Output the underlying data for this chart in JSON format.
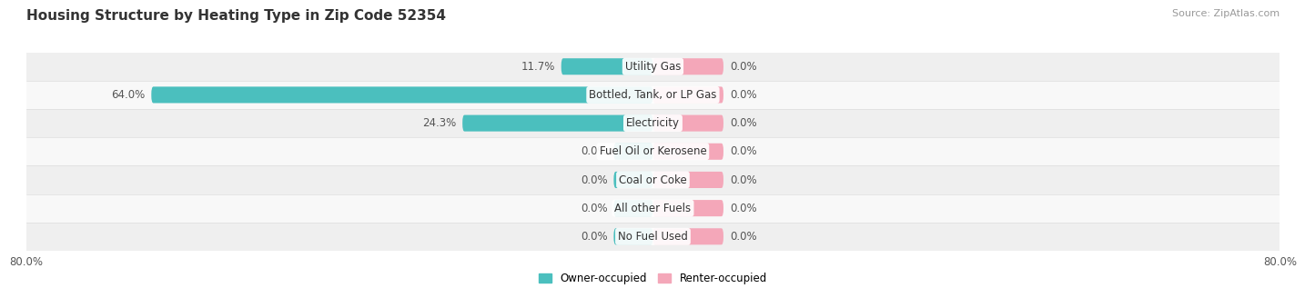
{
  "title": "Housing Structure by Heating Type in Zip Code 52354",
  "source": "Source: ZipAtlas.com",
  "categories": [
    "Utility Gas",
    "Bottled, Tank, or LP Gas",
    "Electricity",
    "Fuel Oil or Kerosene",
    "Coal or Coke",
    "All other Fuels",
    "No Fuel Used"
  ],
  "owner_values": [
    11.7,
    64.0,
    24.3,
    0.0,
    0.0,
    0.0,
    0.0
  ],
  "renter_values": [
    0.0,
    0.0,
    0.0,
    0.0,
    0.0,
    0.0,
    0.0
  ],
  "owner_color": "#4BBFBE",
  "renter_color": "#F4A7B9",
  "row_bg_even": "#EFEFEF",
  "row_bg_odd": "#F8F8F8",
  "xlim_left": -80.0,
  "xlim_right": 80.0,
  "x_left_label": "80.0%",
  "x_right_label": "80.0%",
  "title_fontsize": 11,
  "source_fontsize": 8,
  "label_fontsize": 8.5,
  "cat_fontsize": 8.5,
  "tick_fontsize": 8.5,
  "legend_fontsize": 8.5,
  "bar_height": 0.58,
  "min_owner_display": 5.0,
  "min_renter_display": 9.0,
  "background_color": "#FFFFFF",
  "label_color": "#555555",
  "cat_color": "#333333"
}
